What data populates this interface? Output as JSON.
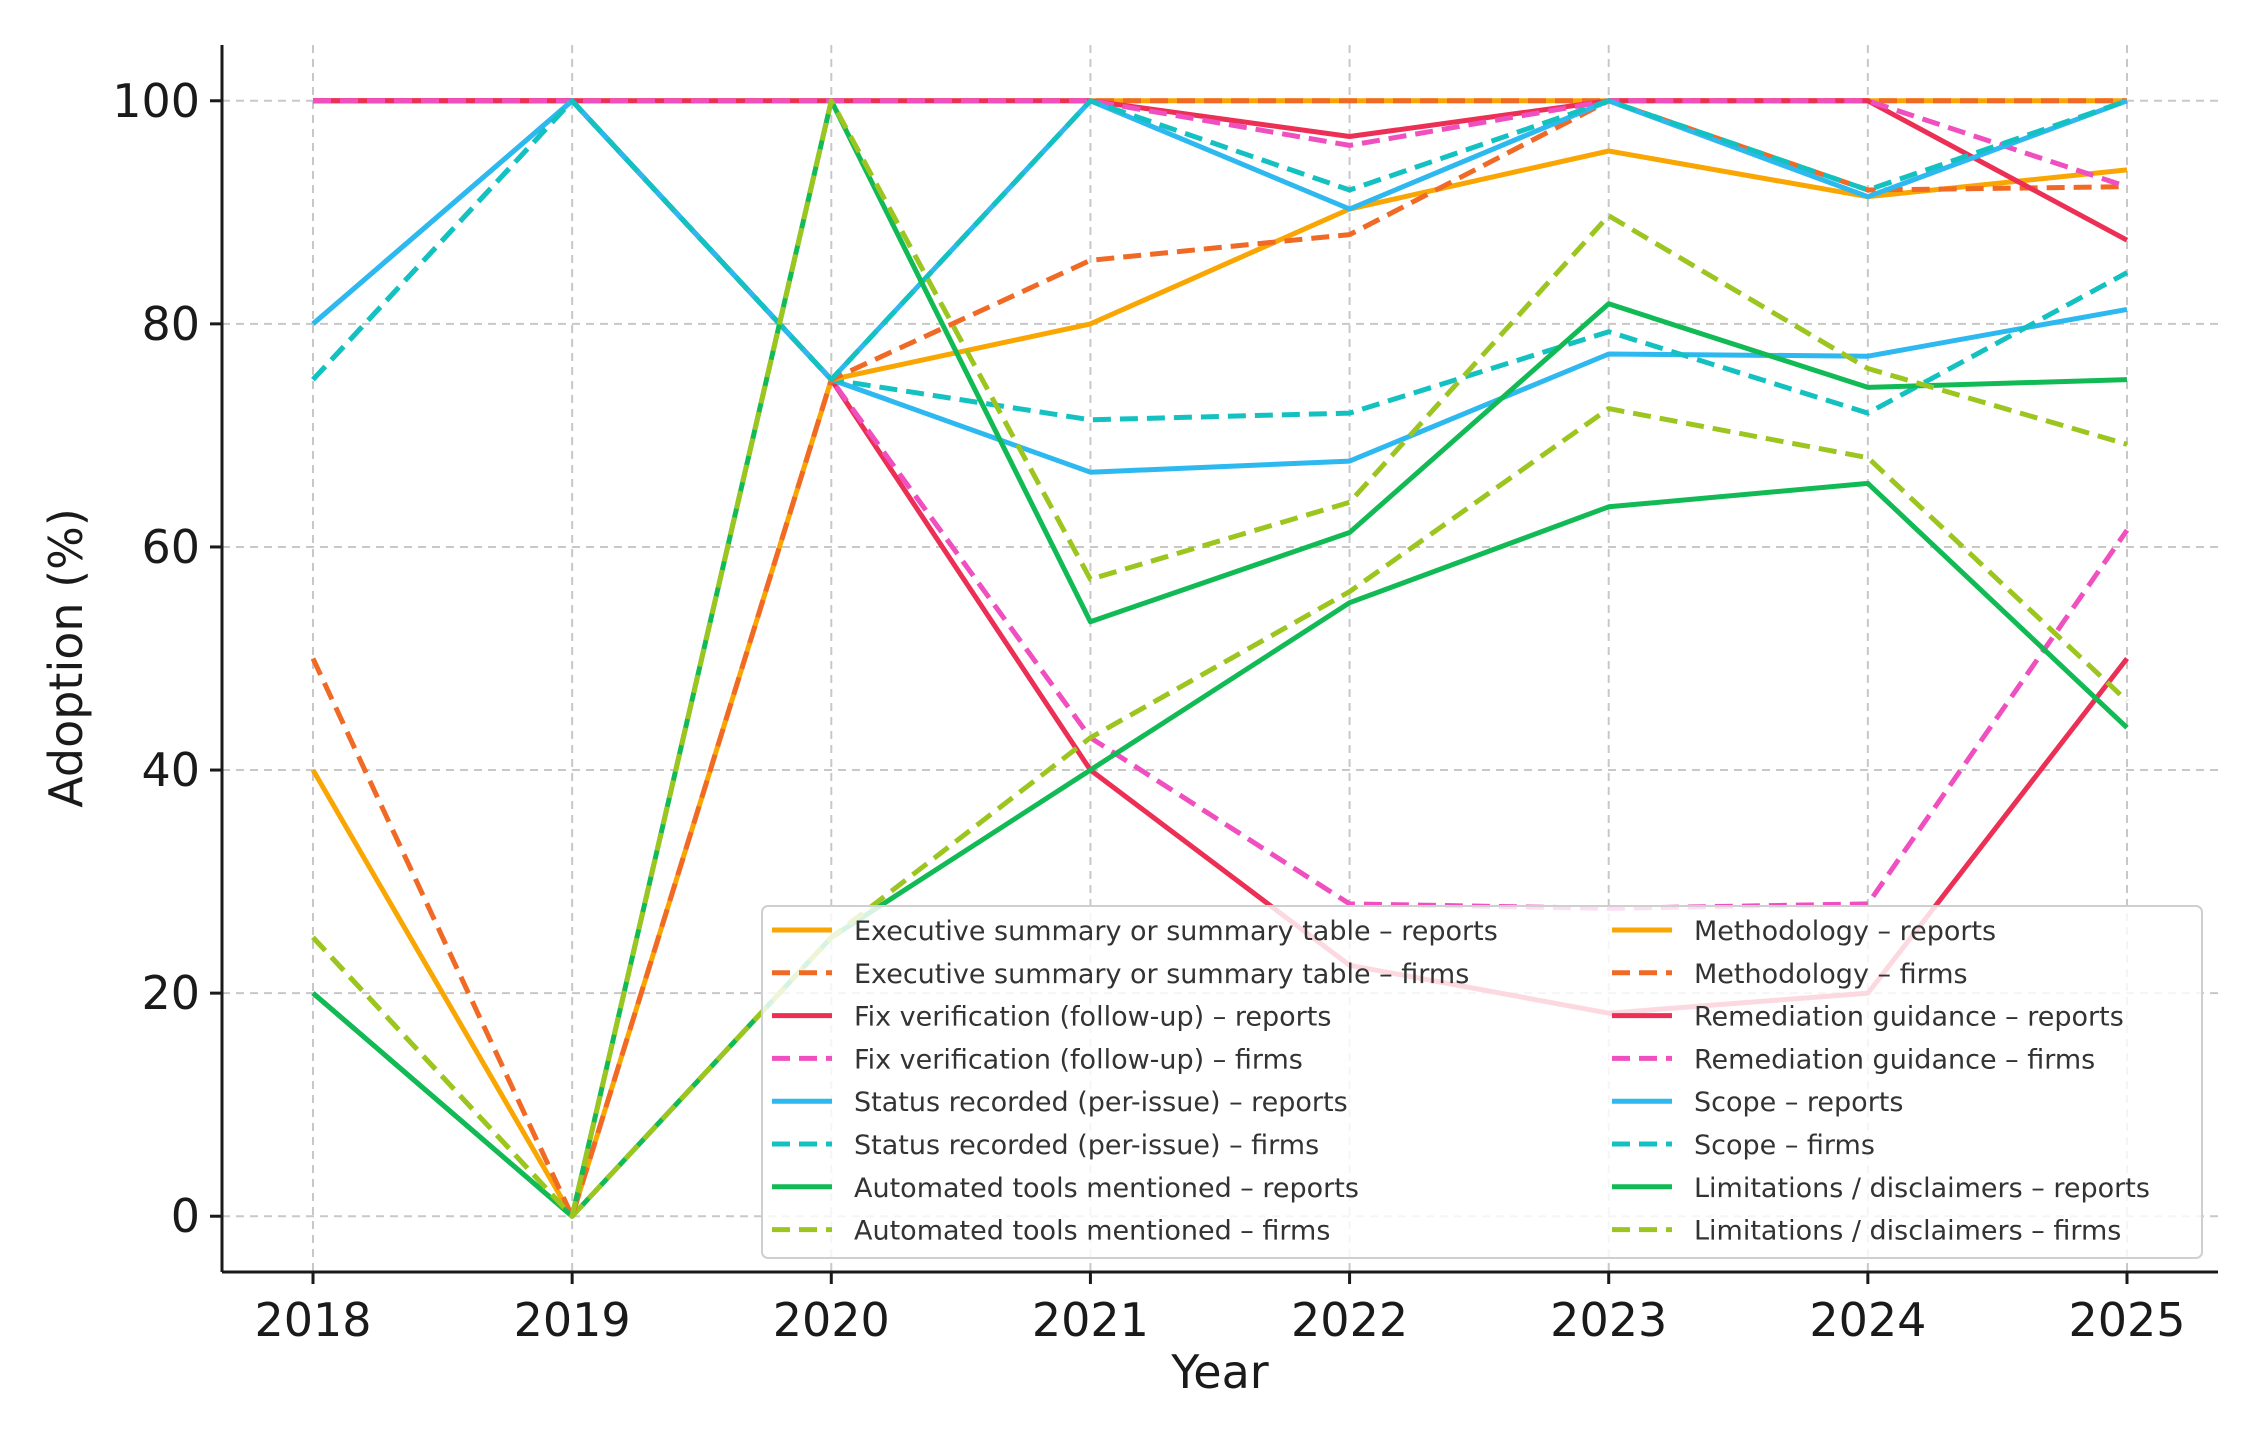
{
  "chart_data": {
    "type": "line",
    "title": "",
    "xlabel": "Year",
    "ylabel": "Adoption (%)",
    "x": [
      2018,
      2019,
      2020,
      2021,
      2022,
      2023,
      2024,
      2025
    ],
    "x_tick_labels": [
      "2018",
      "2019",
      "2020",
      "2021",
      "2022",
      "2023",
      "2024",
      "2025"
    ],
    "yticks": [
      0,
      20,
      40,
      60,
      80,
      100
    ],
    "y_tick_labels": [
      "0",
      "20",
      "40",
      "60",
      "80",
      "100"
    ],
    "ylim": [
      -5,
      105
    ],
    "grid": true,
    "legend_position": "lower-right",
    "series": [
      {
        "name": "Executive summary or summary table – reports",
        "color": "#F9A602",
        "style": "solid",
        "values": [
          100,
          100,
          100,
          100,
          100,
          100,
          100,
          100
        ]
      },
      {
        "name": "Executive summary or summary table – firms",
        "color": "#F06A25",
        "style": "dashed",
        "values": [
          100,
          100,
          100,
          100,
          100,
          100,
          100,
          100
        ]
      },
      {
        "name": "Fix verification (follow-up) – reports",
        "color": "#EC2F55",
        "style": "solid",
        "values": [
          100,
          100,
          75,
          40,
          22.5,
          18.2,
          20,
          50
        ]
      },
      {
        "name": "Fix verification (follow-up) – firms",
        "color": "#F04FC0",
        "style": "dashed",
        "values": [
          100,
          100,
          75,
          42.9,
          28,
          27.6,
          28,
          61.5
        ]
      },
      {
        "name": "Status recorded (per-issue) – reports",
        "color": "#2DB8F0",
        "style": "solid",
        "values": [
          80,
          100,
          75,
          66.7,
          67.7,
          77.3,
          77.1,
          81.3
        ]
      },
      {
        "name": "Status recorded (per-issue) – firms",
        "color": "#14C1C1",
        "style": "dashed",
        "values": [
          75,
          100,
          75,
          71.4,
          72,
          79.3,
          72,
          84.6
        ]
      },
      {
        "name": "Automated tools mentioned – reports",
        "color": "#12BA55",
        "style": "solid",
        "values": [
          20,
          0,
          25,
          40,
          55,
          63.6,
          65.7,
          43.8
        ]
      },
      {
        "name": "Automated tools mentioned – firms",
        "color": "#9CC61F",
        "style": "dashed",
        "values": [
          25,
          0,
          25,
          42.9,
          56,
          72.4,
          68,
          46.2
        ]
      },
      {
        "name": "Methodology – reports",
        "color": "#F9A602",
        "style": "solid",
        "values": [
          40,
          0,
          75,
          80,
          90.3,
          95.5,
          91.4,
          93.8
        ]
      },
      {
        "name": "Methodology – firms",
        "color": "#F06A25",
        "style": "dashed",
        "values": [
          50,
          0,
          75,
          85.7,
          88,
          100,
          92,
          92.3
        ]
      },
      {
        "name": "Remediation guidance – reports",
        "color": "#EC2F55",
        "style": "solid",
        "values": [
          100,
          100,
          100,
          100,
          96.8,
          100,
          100,
          87.5
        ]
      },
      {
        "name": "Remediation guidance – firms",
        "color": "#F04FC0",
        "style": "dashed",
        "values": [
          100,
          100,
          100,
          100,
          96,
          100,
          100,
          92.3
        ]
      },
      {
        "name": "Scope – reports",
        "color": "#2DB8F0",
        "style": "solid",
        "values": [
          80,
          100,
          75,
          100,
          90.3,
          100,
          91.4,
          100
        ]
      },
      {
        "name": "Scope – firms",
        "color": "#14C1C1",
        "style": "dashed",
        "values": [
          75,
          100,
          75,
          100,
          92,
          100,
          92,
          100
        ]
      },
      {
        "name": "Limitations / disclaimers – reports",
        "color": "#12BA55",
        "style": "solid",
        "values": [
          20,
          0,
          100,
          53.3,
          61.3,
          81.8,
          74.3,
          75
        ]
      },
      {
        "name": "Limitations / disclaimers – firms",
        "color": "#9CC61F",
        "style": "dashed",
        "values": [
          25,
          0,
          100,
          57.1,
          64,
          89.7,
          76,
          69.2
        ]
      }
    ]
  }
}
